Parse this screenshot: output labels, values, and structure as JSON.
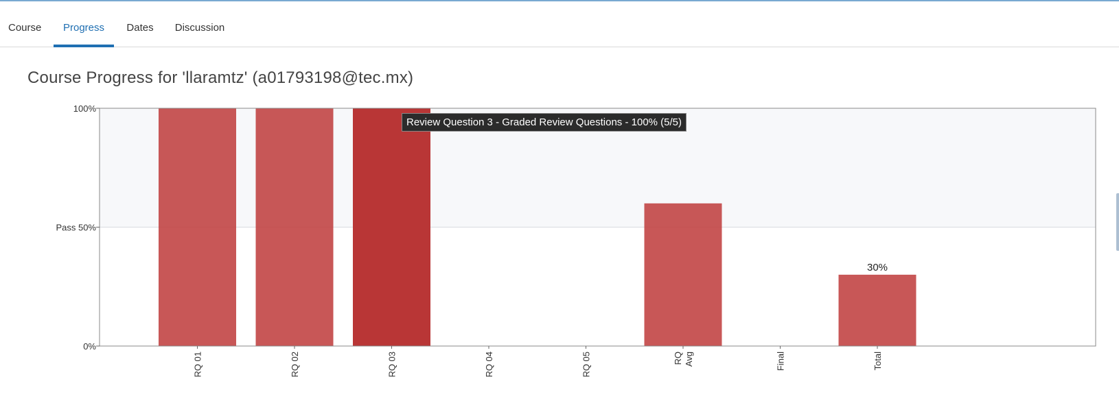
{
  "tabs": [
    {
      "label": "Course",
      "active": false
    },
    {
      "label": "Progress",
      "active": true
    },
    {
      "label": "Dates",
      "active": false
    },
    {
      "label": "Discussion",
      "active": false
    }
  ],
  "page_title": "Course Progress for 'llaramtz' (a01793198@tec.mx)",
  "tooltip": "Review Question 3 - Graded Review Questions - 100% (5/5)",
  "colors": {
    "accent": "#1f6fb2",
    "bar": "#c04040",
    "bar_hover": "#b83232",
    "pass_band": "#f7f8fa"
  },
  "chart_data": {
    "type": "bar",
    "categories": [
      "RQ 01",
      "RQ 02",
      "RQ 03",
      "RQ 04",
      "RQ 05",
      "RQ\nAvg",
      "Final",
      "Total"
    ],
    "values": [
      100,
      100,
      100,
      0,
      0,
      60,
      0,
      30
    ],
    "ylim": [
      0,
      100
    ],
    "yticks": [
      {
        "value": 0,
        "label": "0%"
      },
      {
        "value": 50,
        "label": "Pass 50%"
      },
      {
        "value": 100,
        "label": "100%"
      }
    ],
    "pass_threshold": 50,
    "data_labels": [
      {
        "category": "Total",
        "label": "30%"
      }
    ],
    "highlighted": "RQ 03"
  }
}
